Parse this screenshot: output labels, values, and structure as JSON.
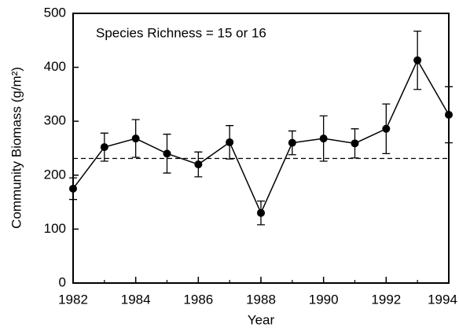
{
  "chart_data": {
    "type": "line",
    "annotation": "Species Richness = 15 or 16",
    "xlabel": "Year",
    "ylabel": "Community Biomass (g/m²)",
    "x": [
      1982,
      1983,
      1984,
      1985,
      1986,
      1987,
      1988,
      1989,
      1990,
      1991,
      1992,
      1993,
      1994
    ],
    "series": [
      {
        "color": "#000000",
        "values": [
          175,
          252,
          268,
          240,
          220,
          261,
          130,
          260,
          268,
          259,
          286,
          413,
          312
        ],
        "errors": [
          20,
          26,
          35,
          36,
          23,
          31,
          22,
          22,
          42,
          27,
          46,
          54,
          52
        ]
      }
    ],
    "reference_line": 231,
    "xlim": [
      1982,
      1994
    ],
    "xticks": [
      1982,
      1984,
      1986,
      1988,
      1990,
      1992,
      1994
    ],
    "ylim": [
      0,
      500
    ],
    "yticks": [
      0,
      100,
      200,
      300,
      400,
      500
    ],
    "grid": false
  }
}
